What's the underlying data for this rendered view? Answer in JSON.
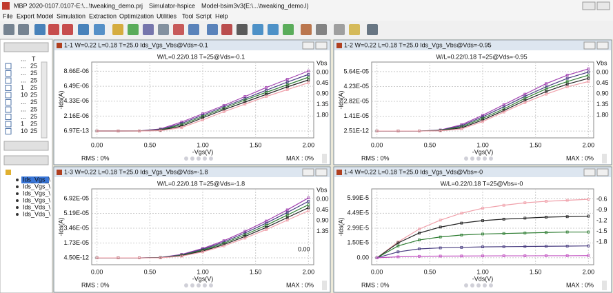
{
  "window": {
    "title": [
      "MBP 2020-0107.0107-E:\\...\\tweaking_demo.prj",
      "Simulator-hspice",
      "Model-bsim3v3(E:\\...\\tweaking_demo.l)"
    ]
  },
  "menu": [
    "File",
    "Export",
    "Model",
    "Simulation",
    "Extraction",
    "Optimization",
    "Utilities",
    "Tool",
    "Script",
    "Help"
  ],
  "left_panel": {
    "table_header": [
      "...",
      "T"
    ],
    "rows": [
      [
        "...",
        "25"
      ],
      [
        "...",
        "25"
      ],
      [
        "...",
        "25"
      ],
      [
        "1",
        "25"
      ],
      [
        "10",
        "25"
      ],
      [
        "...",
        "25"
      ],
      [
        "...",
        "25"
      ],
      [
        "...",
        "25"
      ],
      [
        "1",
        "25"
      ],
      [
        "10",
        "25"
      ]
    ],
    "tree": [
      "Ids_Vgs_\\",
      "Ids_Vgs_\\",
      "Ids_Vgs_\\",
      "Ids_Vgs_\\",
      "Ids_Vds_\\",
      "Ids_Vds_\\"
    ]
  },
  "panels": [
    {
      "type": "line",
      "header": "1-1 W=0.22 L=0.18 T=25.0 Ids_Vgs_Vbs@Vds=-0.1",
      "subtitle": "W/L=0.22/0.18  T=25@Vds=-0.1",
      "xlabel": "-Vgs(V)",
      "ylabel": "-Ids(A)",
      "legend_title": "Vbs",
      "rms": "RMS : 0%",
      "max": "MAX : 0%",
      "grid": true,
      "xlim": [
        -0.05,
        2.05
      ],
      "ylim": [
        -1e-06,
        1e-05
      ],
      "xticks": [
        {
          "value": 0,
          "label": "0.00"
        },
        {
          "value": 0.5,
          "label": "0.50"
        },
        {
          "value": 1,
          "label": "1.00"
        },
        {
          "value": 1.5,
          "label": "1.50"
        },
        {
          "value": 2,
          "label": "2.00"
        }
      ],
      "yticks": [
        {
          "value": 6.97e-13,
          "label": "6.97E-13"
        },
        {
          "value": 2.16e-06,
          "label": "2.16E-06"
        },
        {
          "value": 4.33e-06,
          "label": "4.33E-06"
        },
        {
          "value": 6.49e-06,
          "label": "6.49E-06"
        },
        {
          "value": 8.66e-06,
          "label": "8.66E-06"
        }
      ],
      "x": [
        0,
        0.2,
        0.4,
        0.6,
        0.8,
        1.0,
        1.2,
        1.4,
        1.6,
        1.8,
        2.0
      ],
      "series": [
        {
          "name": "0.00",
          "color": "#a040b0",
          "values": [
            0,
            0,
            1e-08,
            3e-07,
            1.3e-06,
            2.5e-06,
            3.7e-06,
            5e-06,
            6.3e-06,
            7.5e-06,
            8.7e-06
          ]
        },
        {
          "name": "0.45",
          "color": "#483c80",
          "values": [
            0,
            0,
            1e-08,
            2e-07,
            1.1e-06,
            2.3e-06,
            3.5e-06,
            4.7e-06,
            5.9e-06,
            7.1e-06,
            8.2e-06
          ]
        },
        {
          "name": "0.90",
          "color": "#2e7d32",
          "values": [
            0,
            0,
            0,
            1.5e-07,
            9e-07,
            2.1e-06,
            3.3e-06,
            4.5e-06,
            5.6e-06,
            6.7e-06,
            7.8e-06
          ]
        },
        {
          "name": "1.35",
          "color": "#222222",
          "values": [
            0,
            0,
            0,
            1e-07,
            7e-07,
            1.9e-06,
            3.1e-06,
            4.2e-06,
            5.3e-06,
            6.4e-06,
            7.4e-06
          ]
        },
        {
          "name": "1.80",
          "color": "#f0a0aa",
          "values": [
            0,
            0,
            0,
            5e-08,
            5e-07,
            1.6e-06,
            2.8e-06,
            3.9e-06,
            5e-06,
            6e-06,
            7e-06
          ]
        }
      ]
    },
    {
      "type": "line",
      "header": "1-2 W=0.22 L=0.18 T=25.0 Ids_Vgs_Vbs@Vds=-0.95",
      "subtitle": "W/L=0.22/0.18  T=25@Vds=-0.95",
      "xlabel": "-Vgs(V)",
      "ylabel": "-Ids(A)",
      "legend_title": "Vbs",
      "rms": "RMS : 0%",
      "max": "MAX : 0%",
      "grid": true,
      "xlim": [
        -0.05,
        2.05
      ],
      "ylim": [
        -6.5e-06,
        6.55e-05
      ],
      "xticks": [
        {
          "value": 0,
          "label": "0.00"
        },
        {
          "value": 0.5,
          "label": "0.50"
        },
        {
          "value": 1,
          "label": "1.00"
        },
        {
          "value": 1.5,
          "label": "1.50"
        },
        {
          "value": 2,
          "label": "2.00"
        }
      ],
      "yticks": [
        {
          "value": 2.51e-12,
          "label": "2.51E-12"
        },
        {
          "value": 1.41e-05,
          "label": "1.41E-05"
        },
        {
          "value": 2.82e-05,
          "label": "2.82E-05"
        },
        {
          "value": 4.23e-05,
          "label": "4.23E-05"
        },
        {
          "value": 5.64e-05,
          "label": "5.64E-05"
        }
      ],
      "x": [
        0,
        0.2,
        0.4,
        0.6,
        0.8,
        1.0,
        1.2,
        1.4,
        1.6,
        1.8,
        2.0
      ],
      "series": [
        {
          "name": "0.00",
          "color": "#a040b0",
          "values": [
            0,
            0,
            0,
            1e-06,
            6e-06,
            1.5e-05,
            2.5e-05,
            3.5e-05,
            4.5e-05,
            5.3e-05,
            5.9e-05
          ]
        },
        {
          "name": "0.45",
          "color": "#483c80",
          "values": [
            0,
            0,
            0,
            8e-07,
            5e-06,
            1.35e-05,
            2.3e-05,
            3.3e-05,
            4.2e-05,
            5e-05,
            5.6e-05
          ]
        },
        {
          "name": "0.90",
          "color": "#2e7d32",
          "values": [
            0,
            0,
            0,
            6e-07,
            4e-06,
            1.2e-05,
            2.1e-05,
            3.1e-05,
            4e-05,
            4.7e-05,
            5.3e-05
          ]
        },
        {
          "name": "1.35",
          "color": "#222222",
          "values": [
            0,
            0,
            0,
            4e-07,
            3e-06,
            1.05e-05,
            1.95e-05,
            2.9e-05,
            3.75e-05,
            4.45e-05,
            5e-05
          ]
        },
        {
          "name": "1.80",
          "color": "#f0a0aa",
          "values": [
            0,
            0,
            0,
            2e-07,
            2e-06,
            9e-06,
            1.8e-05,
            2.7e-05,
            3.5e-05,
            4.2e-05,
            4.7e-05
          ]
        }
      ]
    },
    {
      "type": "line",
      "header": "1-3 W=0.22 L=0.18 T=25.0 Ids_Vgs_Vbs@Vds=-1.8",
      "subtitle": "W/L=0.22/0.18  T=25@Vds=-1.8",
      "xlabel": "-Vgs(V)",
      "ylabel": "-Ids(A)",
      "legend_title": "Vbs",
      "annotation": "0.00",
      "rms": "RMS : 0%",
      "max": "MAX : 0%",
      "grid": true,
      "xlim": [
        -0.05,
        2.05
      ],
      "ylim": [
        -8e-06,
        8.05e-05
      ],
      "xticks": [
        {
          "value": 0,
          "label": "0.00"
        },
        {
          "value": 0.5,
          "label": "0.50"
        },
        {
          "value": 1,
          "label": "1.00"
        },
        {
          "value": 1.5,
          "label": "1.50"
        },
        {
          "value": 2,
          "label": "2.00"
        }
      ],
      "yticks": [
        {
          "value": 4.5e-12,
          "label": "4.50E-12"
        },
        {
          "value": 1.73e-05,
          "label": "1.73E-05"
        },
        {
          "value": 3.46e-05,
          "label": "3.46E-05"
        },
        {
          "value": 5.19e-05,
          "label": "5.19E-05"
        },
        {
          "value": 6.92e-05,
          "label": "6.92E-05"
        }
      ],
      "x": [
        0,
        0.2,
        0.4,
        0.6,
        0.8,
        1.0,
        1.2,
        1.4,
        1.6,
        1.8,
        2.0
      ],
      "series": [
        {
          "name": "0.00",
          "color": "#a040b0",
          "values": [
            0,
            0,
            0,
            5e-07,
            4e-06,
            1.1e-05,
            2e-05,
            3.1e-05,
            4.3e-05,
            5.6e-05,
            7e-05
          ]
        },
        {
          "name": "0.45",
          "color": "#483c80",
          "values": [
            0,
            0,
            0,
            4e-07,
            3.5e-06,
            1e-05,
            1.85e-05,
            2.9e-05,
            4.05e-05,
            5.3e-05,
            6.6e-05
          ]
        },
        {
          "name": "0.90",
          "color": "#2e7d32",
          "values": [
            0,
            0,
            0,
            3e-07,
            3e-06,
            9e-06,
            1.7e-05,
            2.7e-05,
            3.8e-05,
            5e-05,
            6.2e-05
          ]
        },
        {
          "name": "1.35",
          "color": "#222222",
          "values": [
            0,
            0,
            0,
            2e-07,
            2.5e-06,
            8e-06,
            1.55e-05,
            2.5e-05,
            3.55e-05,
            4.7e-05,
            5.85e-05
          ]
        },
        {
          "color": "#f0a0aa",
          "values": [
            0,
            0,
            0,
            1e-07,
            2e-06,
            7e-06,
            1.4e-05,
            2.3e-05,
            3.3e-05,
            4.4e-05,
            5.5e-05
          ]
        }
      ]
    },
    {
      "type": "line",
      "header": "1-4 W=0.22 L=0.18 T=25.0 Ids_Vgs_Vds@Vbs=-0",
      "subtitle": "W/L=0.22/0.18  T=25@Vbs=-0",
      "xlabel": "-Vds(V)",
      "ylabel": "-Ids(A)",
      "rms": "RMS : 0%",
      "max": "MAX : 0%",
      "grid": true,
      "xlim": [
        -0.05,
        2.05
      ],
      "ylim": [
        -7e-06,
        6.95e-05
      ],
      "xticks": [
        {
          "value": 0,
          "label": "0.00"
        },
        {
          "value": 0.5,
          "label": "0.50"
        },
        {
          "value": 1,
          "label": "1.00"
        },
        {
          "value": 1.5,
          "label": "1.50"
        },
        {
          "value": 2,
          "label": "2.00"
        }
      ],
      "yticks": [
        {
          "value": 0,
          "label": "0.00"
        },
        {
          "value": 1.5e-05,
          "label": "1.50E-5"
        },
        {
          "value": 2.99e-05,
          "label": "2.99E-5"
        },
        {
          "value": 4.49e-05,
          "label": "4.49E-5"
        },
        {
          "value": 5.99e-05,
          "label": "5.99E-5"
        }
      ],
      "x": [
        0,
        0.2,
        0.4,
        0.6,
        0.8,
        1.0,
        1.2,
        1.4,
        1.6,
        1.8,
        2.0
      ],
      "series": [
        {
          "name": "-0.6",
          "color": "#f0a0aa",
          "values": [
            0,
            1.6e-05,
            2.9e-05,
            3.8e-05,
            4.5e-05,
            5e-05,
            5.3e-05,
            5.55e-05,
            5.7e-05,
            5.8e-05,
            5.9e-05
          ]
        },
        {
          "name": "-0.9",
          "color": "#222222",
          "values": [
            0,
            1.5e-05,
            2.5e-05,
            3.1e-05,
            3.5e-05,
            3.75e-05,
            3.9e-05,
            4e-05,
            4.1e-05,
            4.15e-05,
            4.2e-05
          ]
        },
        {
          "name": "-1.2",
          "color": "#2e7d32",
          "values": [
            0,
            1.2e-05,
            1.8e-05,
            2.1e-05,
            2.3e-05,
            2.4e-05,
            2.45e-05,
            2.5e-05,
            2.55e-05,
            2.6e-05,
            2.6e-05
          ]
        },
        {
          "name": "-1.5",
          "color": "#483c80",
          "values": [
            0,
            6e-06,
            9e-06,
            1e-05,
            1.05e-05,
            1.1e-05,
            1.12e-05,
            1.14e-05,
            1.16e-05,
            1.18e-05,
            1.2e-05
          ]
        },
        {
          "name": "-1.8",
          "color": "#c050c0",
          "values": [
            0,
            1e-06,
            1.5e-06,
            1.7e-06,
            1.8e-06,
            1.9e-06,
            2e-06,
            2e-06,
            2.1e-06,
            2.1e-06,
            2.2e-06
          ]
        }
      ]
    }
  ]
}
